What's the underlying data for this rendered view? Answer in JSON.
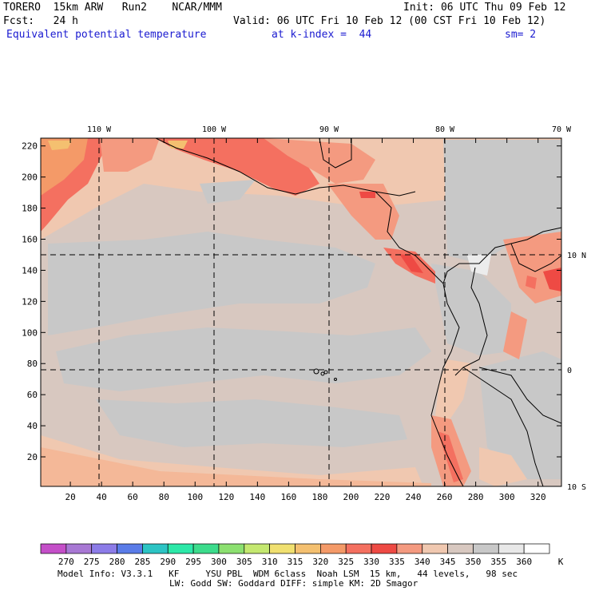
{
  "header": {
    "line1_left": "TORERO  15km ARW   Run2    NCAR/MMM",
    "line1_right": "Init: 06 UTC Thu 09 Feb 12",
    "line2_left": "Fcst:   24 h",
    "line2_right": "Valid: 06 UTC Fri 10 Feb 12 (00 CST Fri 10 Feb 12)",
    "field_name": "Equivalent potential temperature",
    "level": "at k-index =  44",
    "smoothing": "sm= 2"
  },
  "map": {
    "longitude_labels": [
      "110 W",
      "100 W",
      "90 W",
      "80 W",
      "70 W"
    ],
    "latitude_labels": [
      "10 N",
      "0",
      "10 S"
    ],
    "x_ticks": [
      20,
      40,
      60,
      80,
      100,
      120,
      140,
      160,
      180,
      200,
      220,
      240,
      260,
      280,
      300,
      320
    ],
    "y_ticks": [
      20,
      40,
      60,
      80,
      100,
      120,
      140,
      160,
      180,
      200,
      220
    ],
    "x_range": [
      1,
      335
    ],
    "y_range": [
      1,
      225
    ]
  },
  "colorbar": {
    "labels": [
      "270",
      "275",
      "280",
      "285",
      "290",
      "295",
      "300",
      "305",
      "310",
      "315",
      "320",
      "325",
      "330",
      "335",
      "340",
      "345",
      "350",
      "355",
      "360"
    ],
    "unit": "K",
    "colors": [
      "#c44fc8",
      "#a878d4",
      "#8c7ce8",
      "#5a7ce8",
      "#2cc4c4",
      "#2ce8a8",
      "#3cdc8c",
      "#8ce070",
      "#c4e870",
      "#f0e070",
      "#f4c070",
      "#f49a68",
      "#f47060",
      "#ee4a44",
      "#f49a80",
      "#f0c8b0",
      "#d8c8c0",
      "#c8c8c8",
      "#e8e8e8",
      "#ffffff"
    ]
  },
  "footer": {
    "line1": "Model Info: V3.3.1   KF     YSU PBL  WDM 6class  Noah LSM  15 km,   44 levels,   98 sec",
    "line2": "LW: Godd SW: Goddard DIFF: simple KM: 2D Smagor"
  }
}
